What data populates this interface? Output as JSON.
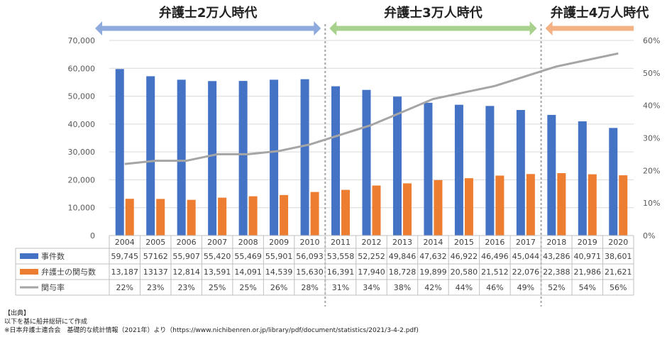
{
  "chart_data": {
    "type": "bar",
    "categories": [
      "2004",
      "2005",
      "2006",
      "2007",
      "2008",
      "2009",
      "2010",
      "2011",
      "2012",
      "2013",
      "2014",
      "2015",
      "2016",
      "2017",
      "2018",
      "2019",
      "2020"
    ],
    "series": [
      {
        "name": "事件数",
        "kind": "bar",
        "axis": "left",
        "color": "#4472c4",
        "values": [
          59745,
          57162,
          55907,
          55420,
          55469,
          55901,
          56093,
          53558,
          52252,
          49846,
          47632,
          46922,
          46496,
          45044,
          43286,
          40971,
          38601
        ],
        "labels": [
          "59,745",
          "57162",
          "55,907",
          "55,420",
          "55,469",
          "55,901",
          "56,093",
          "53,558",
          "52,252",
          "49,846",
          "47,632",
          "46,922",
          "46,496",
          "45,044",
          "43,286",
          "40,971",
          "38,601"
        ]
      },
      {
        "name": "弁護士の関与数",
        "kind": "bar",
        "axis": "left",
        "color": "#ed7d31",
        "values": [
          13187,
          13137,
          12814,
          13591,
          14091,
          14539,
          15630,
          16391,
          17940,
          18728,
          19899,
          20580,
          21512,
          22076,
          22388,
          21986,
          21621
        ],
        "labels": [
          "13,187",
          "13137",
          "12,814",
          "13,591",
          "14,091",
          "14,539",
          "15,630",
          "16,391",
          "17,940",
          "18,728",
          "19,899",
          "20,580",
          "21,512",
          "22,076",
          "22,388",
          "21,986",
          "21,621"
        ]
      },
      {
        "name": "関与率",
        "kind": "line",
        "axis": "right",
        "color": "#a5a5a5",
        "values": [
          22,
          23,
          23,
          25,
          25,
          26,
          28,
          31,
          34,
          38,
          42,
          44,
          46,
          49,
          52,
          54,
          56
        ],
        "labels": [
          "22%",
          "23%",
          "23%",
          "25%",
          "25%",
          "26%",
          "28%",
          "31%",
          "34%",
          "38%",
          "42%",
          "44%",
          "46%",
          "49%",
          "52%",
          "54%",
          "56%"
        ]
      }
    ],
    "y_left": {
      "min": 0,
      "max": 70000,
      "step": 10000,
      "ticks": [
        "0",
        "10,000",
        "20,000",
        "30,000",
        "40,000",
        "50,000",
        "60,000",
        "70,000"
      ]
    },
    "y_right": {
      "min": 0,
      "max": 60,
      "step": 10,
      "ticks": [
        "0%",
        "10%",
        "20%",
        "30%",
        "40%",
        "50%",
        "60%"
      ]
    },
    "eras": [
      {
        "label": "弁護士2万人時代",
        "start": 0,
        "end": 6,
        "color": "#8faadc"
      },
      {
        "label": "弁護士3万人時代",
        "start": 7,
        "end": 13,
        "color": "#a9d18e"
      },
      {
        "label": "弁護士4万人時代",
        "start": 14,
        "end": 16,
        "color": "#f4b183"
      }
    ],
    "legend_placement": "data-table"
  },
  "source_notes": [
    "【出典】",
    "以下を基に船井総研にて作成",
    "※日本弁護士連合会　基礎的な統計情報（2021年）より（https://www.nichibenren.or.jp/library/pdf/document/statistics/2021/3-4-2.pdf)"
  ]
}
